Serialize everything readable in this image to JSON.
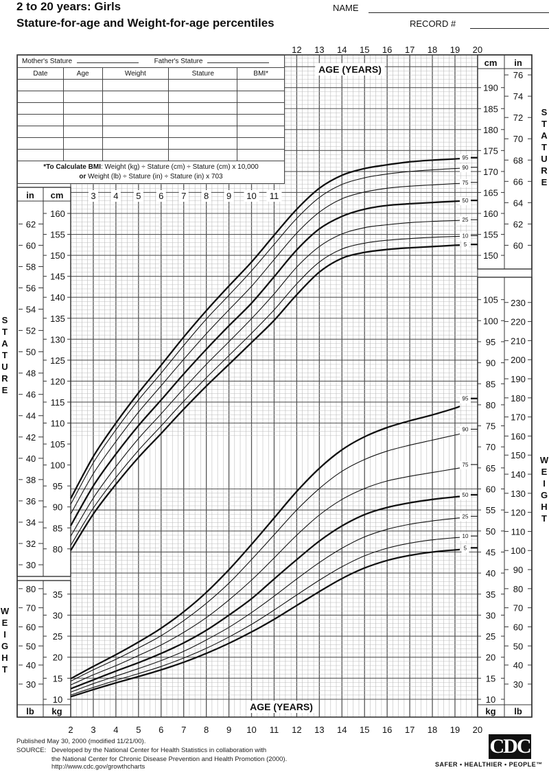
{
  "header": {
    "title_line1": "2 to 20 years: Girls",
    "title_line2": "Stature-for-age and Weight-for-age percentiles",
    "name_label": "NAME",
    "record_label": "RECORD #"
  },
  "record_table": {
    "mothers_stature_label": "Mother's Stature",
    "fathers_stature_label": "Father's Stature",
    "columns": [
      "Date",
      "Age",
      "Weight",
      "Stature",
      "BMI*"
    ],
    "empty_rows": 7,
    "bmi_note_bold": "*To Calculate BMI",
    "bmi_note_line1": ": Weight (kg) ÷ Stature (cm) ÷ Stature (cm) x 10,000",
    "bmi_note_or": "or",
    "bmi_note_line2": " Weight (lb) ÷ Stature (in) ÷ Stature (in) x 703"
  },
  "axis": {
    "age_title": "AGE (YEARS)",
    "age_ticks_top": [
      12,
      13,
      14,
      15,
      16,
      17,
      18,
      19,
      20
    ],
    "age_ticks_inner": [
      3,
      4,
      5,
      6,
      7,
      8,
      9,
      10,
      11
    ],
    "age_ticks_bottom": [
      2,
      3,
      4,
      5,
      6,
      7,
      8,
      9,
      10,
      11,
      12,
      13,
      14,
      15,
      16,
      17,
      18,
      19,
      20
    ],
    "stature_title": "STATURE",
    "weight_title": "WEIGHT",
    "unit_in": "in",
    "unit_cm": "cm",
    "unit_lb": "lb",
    "unit_kg": "kg",
    "left_stature_in": [
      30,
      32,
      34,
      36,
      38,
      40,
      42,
      44,
      46,
      48,
      50,
      52,
      54,
      56,
      58,
      60,
      62
    ],
    "left_stature_cm": [
      80,
      85,
      90,
      95,
      100,
      105,
      110,
      115,
      120,
      125,
      130,
      135,
      140,
      145,
      150,
      155,
      160
    ],
    "right_stature_cm": [
      150,
      155,
      160,
      165,
      170,
      175,
      180,
      185,
      190
    ],
    "right_stature_in": [
      60,
      62,
      64,
      66,
      68,
      70,
      72,
      74,
      76
    ],
    "left_weight_lb": [
      30,
      40,
      50,
      60,
      70,
      80
    ],
    "left_weight_kg": [
      10,
      15,
      20,
      25,
      30,
      35
    ],
    "right_weight_kg": [
      10,
      15,
      20,
      25,
      30,
      35,
      40,
      45,
      50,
      55,
      60,
      65,
      70,
      75,
      80,
      85,
      90,
      95,
      100,
      105
    ],
    "right_weight_lb": [
      30,
      40,
      50,
      60,
      70,
      80,
      90,
      100,
      110,
      120,
      130,
      140,
      150,
      160,
      170,
      180,
      190,
      200,
      210,
      220,
      230
    ]
  },
  "chart_data": [
    {
      "type": "line",
      "title": "Stature-for-age",
      "xlabel": "AGE (YEARS)",
      "ylabel": "STATURE",
      "y_unit": "cm",
      "xlim": [
        2,
        20
      ],
      "ylim": [
        77,
        197
      ],
      "grid": true,
      "x": [
        2,
        3,
        4,
        5,
        6,
        7,
        8,
        9,
        10,
        11,
        12,
        13,
        14,
        15,
        16,
        17,
        18,
        19,
        20
      ],
      "series": [
        {
          "name": "95",
          "values": [
            92.0,
            102.0,
            110.0,
            117.2,
            123.8,
            130.5,
            136.8,
            142.7,
            148.4,
            154.8,
            161.0,
            166.0,
            169.1,
            170.7,
            171.6,
            172.3,
            172.7,
            173.0,
            173.3
          ]
        },
        {
          "name": "90",
          "values": [
            90.6,
            100.5,
            108.4,
            115.5,
            121.9,
            128.5,
            134.8,
            140.5,
            146.3,
            152.6,
            158.8,
            163.8,
            166.9,
            168.5,
            169.4,
            170.0,
            170.4,
            170.7,
            171.0
          ]
        },
        {
          "name": "75",
          "values": [
            88.3,
            97.9,
            105.6,
            112.6,
            118.9,
            125.2,
            131.3,
            137.0,
            142.6,
            149.0,
            155.3,
            160.3,
            163.5,
            165.1,
            166.0,
            166.5,
            166.8,
            167.1,
            167.4
          ]
        },
        {
          "name": "50",
          "values": [
            85.5,
            95.0,
            102.6,
            109.4,
            115.5,
            121.7,
            127.6,
            133.2,
            138.6,
            144.9,
            151.3,
            156.3,
            159.3,
            161.0,
            161.9,
            162.3,
            162.6,
            162.9,
            163.1
          ]
        },
        {
          "name": "25",
          "values": [
            83.0,
            92.1,
            99.6,
            106.3,
            112.2,
            118.2,
            124.0,
            129.4,
            134.9,
            140.8,
            147.2,
            152.1,
            155.1,
            156.6,
            157.3,
            157.8,
            158.1,
            158.3,
            158.5
          ]
        },
        {
          "name": "10",
          "values": [
            80.8,
            89.7,
            97.0,
            103.5,
            109.3,
            115.2,
            120.8,
            126.1,
            131.4,
            137.0,
            143.2,
            148.4,
            151.5,
            152.9,
            153.6,
            154.0,
            154.3,
            154.5,
            154.7
          ]
        },
        {
          "name": "5",
          "values": [
            79.6,
            88.3,
            95.4,
            101.8,
            107.5,
            113.3,
            118.8,
            124.0,
            129.2,
            134.5,
            140.6,
            146.0,
            149.3,
            150.7,
            151.4,
            151.8,
            152.1,
            152.4,
            152.6
          ]
        }
      ]
    },
    {
      "type": "line",
      "title": "Weight-for-age",
      "xlabel": "AGE (YEARS)",
      "ylabel": "WEIGHT",
      "y_unit": "kg",
      "xlim": [
        2,
        20
      ],
      "ylim": [
        8,
        110
      ],
      "grid": true,
      "x": [
        2,
        3,
        4,
        5,
        6,
        7,
        8,
        9,
        10,
        11,
        12,
        13,
        14,
        15,
        16,
        17,
        18,
        19,
        20
      ],
      "series": [
        {
          "name": "95",
          "values": [
            14.9,
            17.8,
            20.6,
            23.6,
            26.9,
            30.8,
            35.4,
            40.8,
            46.8,
            53.1,
            59.4,
            64.9,
            69.3,
            72.4,
            74.6,
            76.2,
            77.6,
            79.2,
            81.5
          ]
        },
        {
          "name": "90",
          "values": [
            14.3,
            17.0,
            19.5,
            22.2,
            25.1,
            28.7,
            32.8,
            37.6,
            43.2,
            49.1,
            55.0,
            60.1,
            64.2,
            67.0,
            69.0,
            70.4,
            71.6,
            72.8,
            74.2
          ]
        },
        {
          "name": "75",
          "values": [
            13.4,
            15.8,
            18.0,
            20.4,
            22.9,
            25.9,
            29.4,
            33.6,
            38.3,
            43.6,
            49.0,
            53.8,
            57.5,
            60.1,
            61.9,
            63.0,
            63.9,
            64.8,
            65.8
          ]
        },
        {
          "name": "50",
          "values": [
            12.5,
            14.6,
            16.7,
            18.7,
            20.9,
            23.4,
            26.4,
            30.0,
            33.9,
            38.6,
            43.2,
            47.6,
            51.2,
            53.9,
            55.6,
            56.7,
            57.5,
            58.1,
            58.6
          ]
        },
        {
          "name": "25",
          "values": [
            11.7,
            13.7,
            15.5,
            17.3,
            19.2,
            21.4,
            24.1,
            27.1,
            30.6,
            34.5,
            38.6,
            42.5,
            45.9,
            48.6,
            50.4,
            51.6,
            52.4,
            53.0,
            53.5
          ]
        },
        {
          "name": "10",
          "values": [
            11.0,
            12.8,
            14.5,
            16.1,
            17.8,
            19.8,
            22.1,
            24.8,
            27.8,
            31.2,
            34.8,
            38.3,
            41.5,
            44.1,
            45.9,
            47.1,
            47.9,
            48.4,
            48.8
          ]
        },
        {
          "name": "5",
          "values": [
            10.6,
            12.3,
            13.9,
            15.4,
            17.0,
            18.8,
            20.9,
            23.3,
            26.0,
            29.0,
            32.3,
            35.6,
            38.7,
            41.2,
            43.0,
            44.2,
            45.0,
            45.5,
            46.0
          ]
        }
      ]
    }
  ],
  "colors": {
    "ink": "#111111",
    "grid_major": "#555555",
    "grid_minor": "#bbbbbb",
    "background": "#ffffff"
  },
  "footer": {
    "published": "Published May 30, 2000 (modified 11/21/00).",
    "source_label": "SOURCE:",
    "source_line1": "Developed by the National Center for Health Statistics in collaboration with",
    "source_line2": "the National Center for Chronic Disease Prevention and Health Promotion (2000).",
    "url": "http://www.cdc.gov/growthcharts",
    "logo_text": "CDC",
    "tagline": "SAFER • HEALTHIER • PEOPLE™"
  }
}
